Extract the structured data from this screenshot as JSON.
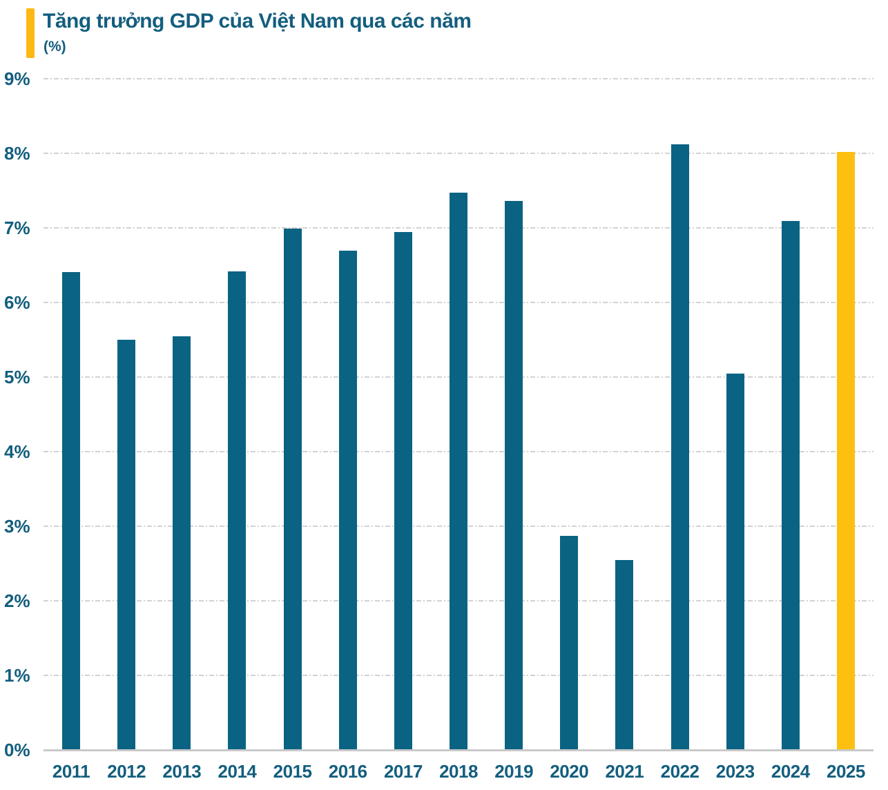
{
  "header": {
    "title": "Tăng trưởng GDP của Việt Nam qua các năm",
    "subtitle": "(%)"
  },
  "chart_data": {
    "type": "bar",
    "title": "Tăng trưởng GDP của Việt Nam qua các năm",
    "subtitle": "(%)",
    "categories": [
      "2011",
      "2012",
      "2013",
      "2014",
      "2015",
      "2016",
      "2017",
      "2018",
      "2019",
      "2020",
      "2021",
      "2022",
      "2023",
      "2024",
      "2025"
    ],
    "values": [
      6.41,
      5.5,
      5.55,
      6.42,
      6.99,
      6.69,
      6.94,
      7.47,
      7.36,
      2.87,
      2.55,
      8.12,
      5.05,
      7.09,
      8.02
    ],
    "unit": "%",
    "ylim": [
      0,
      9
    ],
    "ytick_step": 1,
    "ytick_labels": [
      "0%",
      "1%",
      "2%",
      "3%",
      "4%",
      "5%",
      "6%",
      "7%",
      "8%",
      "9%"
    ],
    "grid": "horizontal-dash-dot",
    "legend": "none",
    "colors": {
      "bar": "#0A6382",
      "highlight": "#FDC010",
      "accent_bar": "#FDB913",
      "text": "#135E7E",
      "grid_line": "#D2D2D2",
      "axis_line": "#C9C9C9"
    },
    "highlight_category": "2025"
  }
}
